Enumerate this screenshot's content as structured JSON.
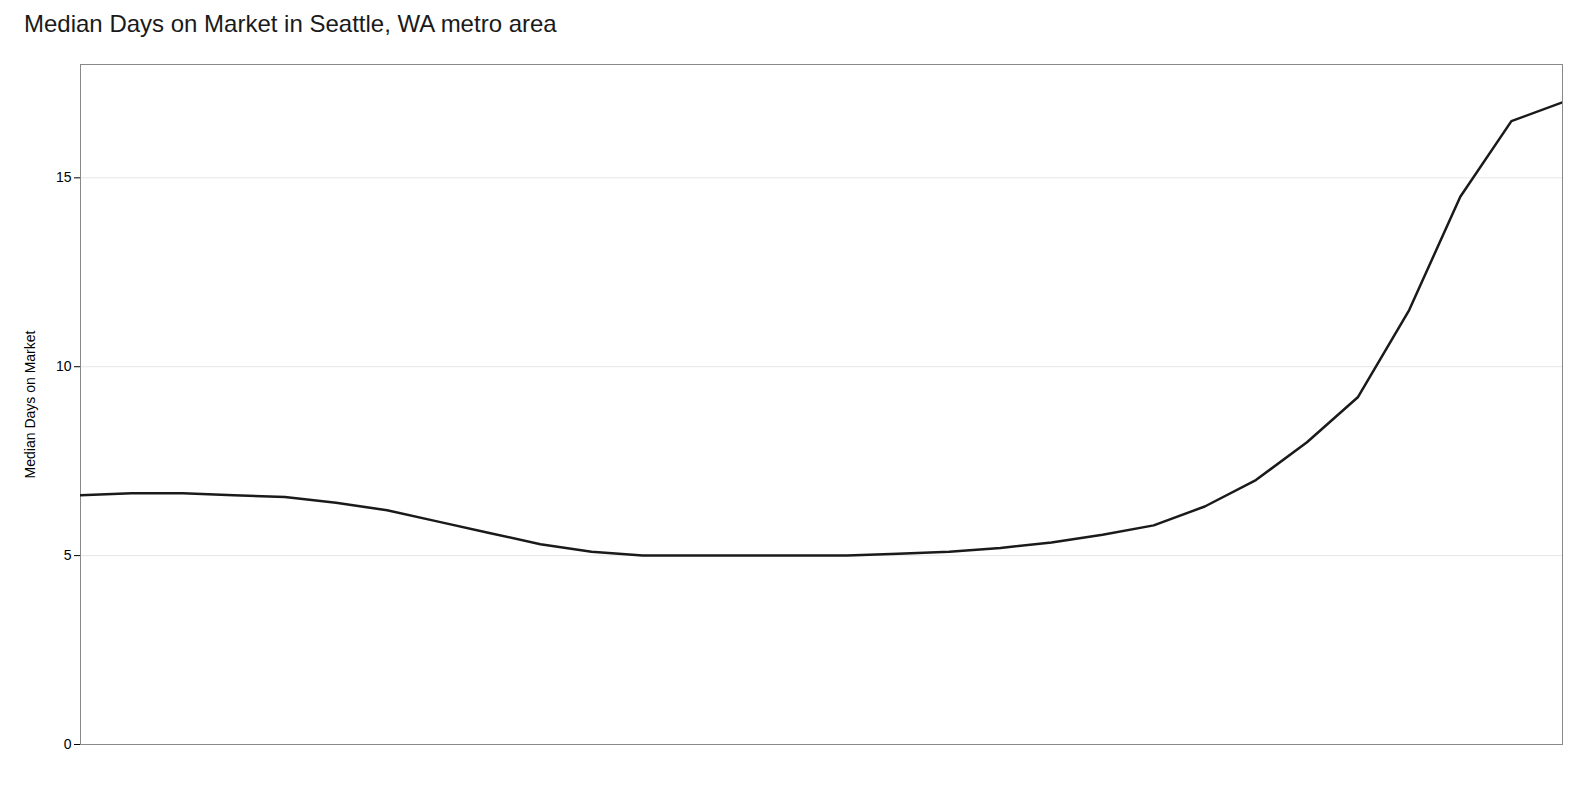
{
  "chart_data": {
    "type": "line",
    "title": "Median Days on Market in Seattle, WA metro area",
    "ylabel": "Median Days on Market",
    "x": [
      0,
      1,
      2,
      3,
      4,
      5,
      6,
      7,
      8,
      9,
      10,
      11,
      12,
      13,
      14,
      15,
      16,
      17,
      18,
      19,
      20,
      21,
      22,
      23,
      24,
      25,
      26,
      27,
      28,
      29
    ],
    "values": [
      6.6,
      6.65,
      6.65,
      6.6,
      6.55,
      6.4,
      6.2,
      5.9,
      5.6,
      5.3,
      5.1,
      5.0,
      5.0,
      5.0,
      5.0,
      5.0,
      5.05,
      5.1,
      5.2,
      5.35,
      5.55,
      5.8,
      6.3,
      7.0,
      8.0,
      9.2,
      11.5,
      14.5,
      16.5,
      17.0
    ],
    "color": "#1a1a1a",
    "xlim": [
      0,
      29
    ],
    "ylim": [
      0,
      18
    ],
    "yticks": [
      0,
      5,
      10,
      15
    ],
    "grid": true,
    "tick_labels": "y"
  }
}
